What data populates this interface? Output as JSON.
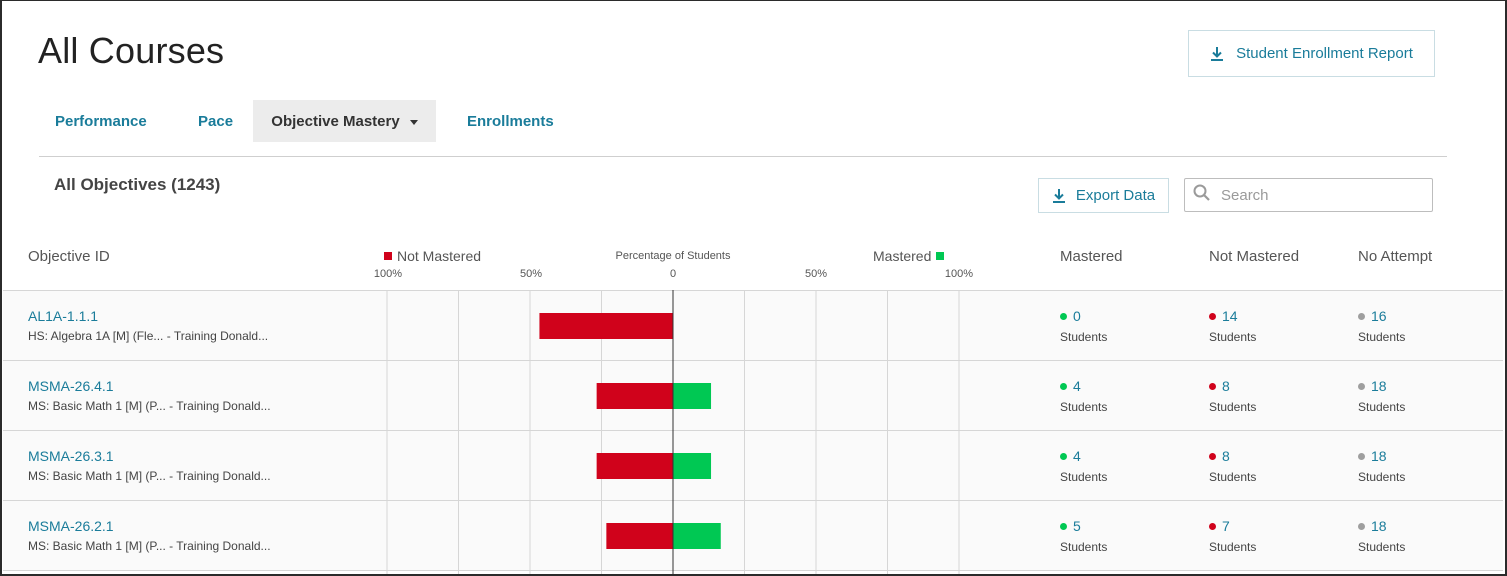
{
  "page": {
    "title": "All Courses"
  },
  "header": {
    "enrollment_report_label": "Student Enrollment Report"
  },
  "tabs": [
    {
      "label": "Performance"
    },
    {
      "label": "Pace"
    },
    {
      "label": "Objective Mastery"
    },
    {
      "label": "Enrollments"
    }
  ],
  "section": {
    "title": "All Objectives (1243)"
  },
  "toolbar": {
    "export_label": "Export Data",
    "search_placeholder": "Search"
  },
  "table": {
    "col_objective": "Objective ID",
    "legend_not_mastered": "Not Mastered",
    "legend_mastered": "Mastered",
    "chart_title": "Percentage of Students",
    "col_mastered": "Mastered",
    "col_not_mastered": "Not Mastered",
    "col_no_attempt": "No Attempt",
    "student_label": "Students"
  },
  "colors": {
    "not_mastered": "#d0021b",
    "mastered": "#00c853",
    "no_attempt": "#9e9e9e",
    "link": "#1a7c9a"
  },
  "chart_data": {
    "type": "bar",
    "title": "Percentage of Students",
    "tick_labels": [
      "100%",
      "50%",
      "0",
      "50%",
      "100%"
    ],
    "xlim": [
      -100,
      100
    ],
    "categories": [
      "AL1A-1.1.1",
      "MSMA-26.4.1",
      "MSMA-26.3.1",
      "MSMA-26.2.1"
    ],
    "series": [
      {
        "name": "Not Mastered",
        "values": [
          46.7,
          26.7,
          26.7,
          23.3
        ]
      },
      {
        "name": "Mastered",
        "values": [
          0,
          13.3,
          13.3,
          16.7
        ]
      }
    ]
  },
  "rows": [
    {
      "id": "AL1A-1.1.1",
      "desc": "HS: Algebra 1A [M] (Fle...  - Training Donald...",
      "mastered": "0",
      "not_mastered": "14",
      "no_attempt": "16"
    },
    {
      "id": "MSMA-26.4.1",
      "desc": "MS: Basic Math 1 [M] (P...  - Training Donald...",
      "mastered": "4",
      "not_mastered": "8",
      "no_attempt": "18"
    },
    {
      "id": "MSMA-26.3.1",
      "desc": "MS: Basic Math 1 [M] (P...  - Training Donald...",
      "mastered": "4",
      "not_mastered": "8",
      "no_attempt": "18"
    },
    {
      "id": "MSMA-26.2.1",
      "desc": "MS: Basic Math 1 [M] (P...  - Training Donald...",
      "mastered": "5",
      "not_mastered": "7",
      "no_attempt": "18"
    }
  ]
}
